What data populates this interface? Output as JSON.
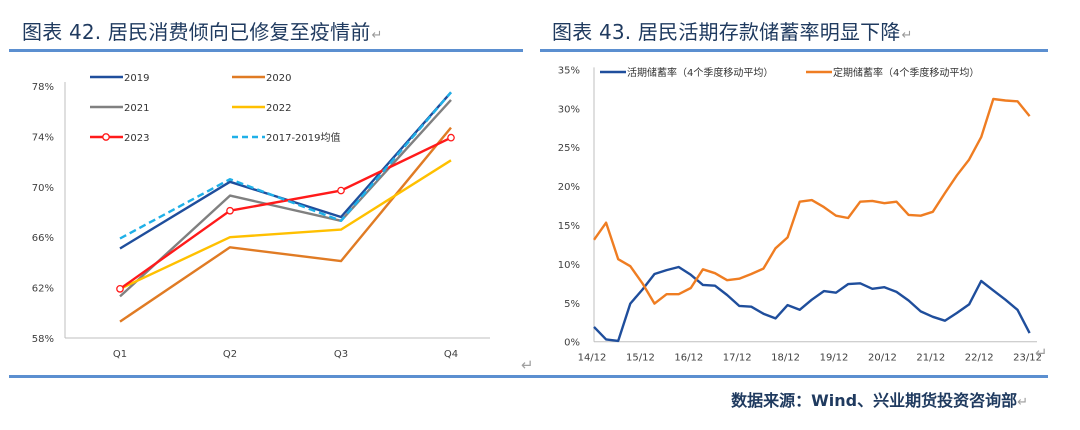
{
  "left_figure": {
    "title": "图表 42. 居民消费倾向已修复至疫情前"
  },
  "right_figure": {
    "title": "图表 43. 居民活期存款储蓄率明显下降"
  },
  "paragraph_mark": "↵",
  "source": "数据来源：Wind、兴业期货投资咨询部",
  "colors": {
    "title": "#1f3a5f",
    "rule": "#5b8fd0",
    "s2019": "#1f4e9c",
    "s2020": "#e07b24",
    "s2021": "#808080",
    "s2022": "#ffc000",
    "s2023": "#ff1a1a",
    "savg": "#1fb0e8",
    "demand": "#1f4e9c",
    "time": "#ef7d22"
  },
  "chart_data": [
    {
      "type": "line",
      "title": "图表 42. 居民消费倾向已修复至疫情前",
      "xlabel": "",
      "ylabel": "",
      "categories": [
        "Q1",
        "Q2",
        "Q3",
        "Q4"
      ],
      "ylim": [
        58,
        78
      ],
      "yticks": [
        58,
        62,
        66,
        70,
        74,
        78
      ],
      "ytick_labels": [
        "58%",
        "62%",
        "66%",
        "70%",
        "74%",
        "78%"
      ],
      "legend_position": "top",
      "grid": false,
      "series": [
        {
          "name": "2019",
          "values": [
            65.1,
            70.4,
            67.6,
            77.5
          ],
          "color_key": "s2019",
          "style": "solid"
        },
        {
          "name": "2020",
          "values": [
            59.3,
            65.2,
            64.1,
            74.7
          ],
          "color_key": "s2020",
          "style": "solid"
        },
        {
          "name": "2021",
          "values": [
            61.3,
            69.3,
            67.3,
            76.9
          ],
          "color_key": "s2021",
          "style": "solid"
        },
        {
          "name": "2022",
          "values": [
            61.9,
            66.0,
            66.6,
            72.1
          ],
          "color_key": "s2022",
          "style": "solid"
        },
        {
          "name": "2023",
          "values": [
            61.9,
            68.1,
            69.7,
            73.9
          ],
          "color_key": "s2023",
          "style": "marker"
        },
        {
          "name": "2017-2019均值",
          "values": [
            65.9,
            70.6,
            67.3,
            77.5
          ],
          "color_key": "savg",
          "style": "dashed"
        }
      ]
    },
    {
      "type": "line",
      "title": "图表 43. 居民活期存款储蓄率明显下降",
      "xlabel": "",
      "ylabel": "",
      "x": [
        "14/12",
        "15/03",
        "15/06",
        "15/09",
        "15/12",
        "16/03",
        "16/06",
        "16/09",
        "16/12",
        "17/03",
        "17/06",
        "17/09",
        "17/12",
        "18/03",
        "18/06",
        "18/09",
        "18/12",
        "19/03",
        "19/06",
        "19/09",
        "19/12",
        "20/03",
        "20/06",
        "20/09",
        "20/12",
        "21/03",
        "21/06",
        "21/09",
        "21/12",
        "22/03",
        "22/06",
        "22/09",
        "22/12",
        "23/03",
        "23/06",
        "23/09",
        "23/12"
      ],
      "xtick_labels": [
        "14/12",
        "15/12",
        "16/12",
        "17/12",
        "18/12",
        "19/12",
        "20/12",
        "21/12",
        "22/12",
        "23/12"
      ],
      "ylim": [
        0,
        35
      ],
      "yticks": [
        0,
        5,
        10,
        15,
        20,
        25,
        30,
        35
      ],
      "ytick_labels": [
        "0%",
        "5%",
        "10%",
        "15%",
        "20%",
        "25%",
        "30%",
        "35%"
      ],
      "legend_position": "top",
      "grid": false,
      "series": [
        {
          "name": "活期储蓄率（4个季度移动平均）",
          "color_key": "demand",
          "values": [
            1.9,
            0.3,
            0.1,
            4.9,
            6.7,
            8.7,
            9.2,
            9.6,
            8.6,
            7.3,
            7.2,
            6.0,
            4.6,
            4.5,
            3.6,
            3.0,
            4.7,
            4.1,
            5.4,
            6.5,
            6.3,
            7.4,
            7.5,
            6.8,
            7.0,
            6.4,
            5.3,
            3.9,
            3.2,
            2.7,
            3.7,
            4.8,
            7.8,
            6.6,
            5.4,
            4.1,
            1.1
          ]
        },
        {
          "name": "定期储蓄率（4个季度移动平均）",
          "color_key": "time",
          "values": [
            13.1,
            15.3,
            10.6,
            9.7,
            7.5,
            4.9,
            6.1,
            6.1,
            6.9,
            9.3,
            8.8,
            7.9,
            8.1,
            8.7,
            9.4,
            12.0,
            13.4,
            18.0,
            18.2,
            17.3,
            16.2,
            15.9,
            18.0,
            18.1,
            17.8,
            18.0,
            16.3,
            16.2,
            16.7,
            19.1,
            21.4,
            23.4,
            26.3,
            31.2,
            31.0,
            30.9,
            29.0
          ]
        }
      ]
    }
  ]
}
